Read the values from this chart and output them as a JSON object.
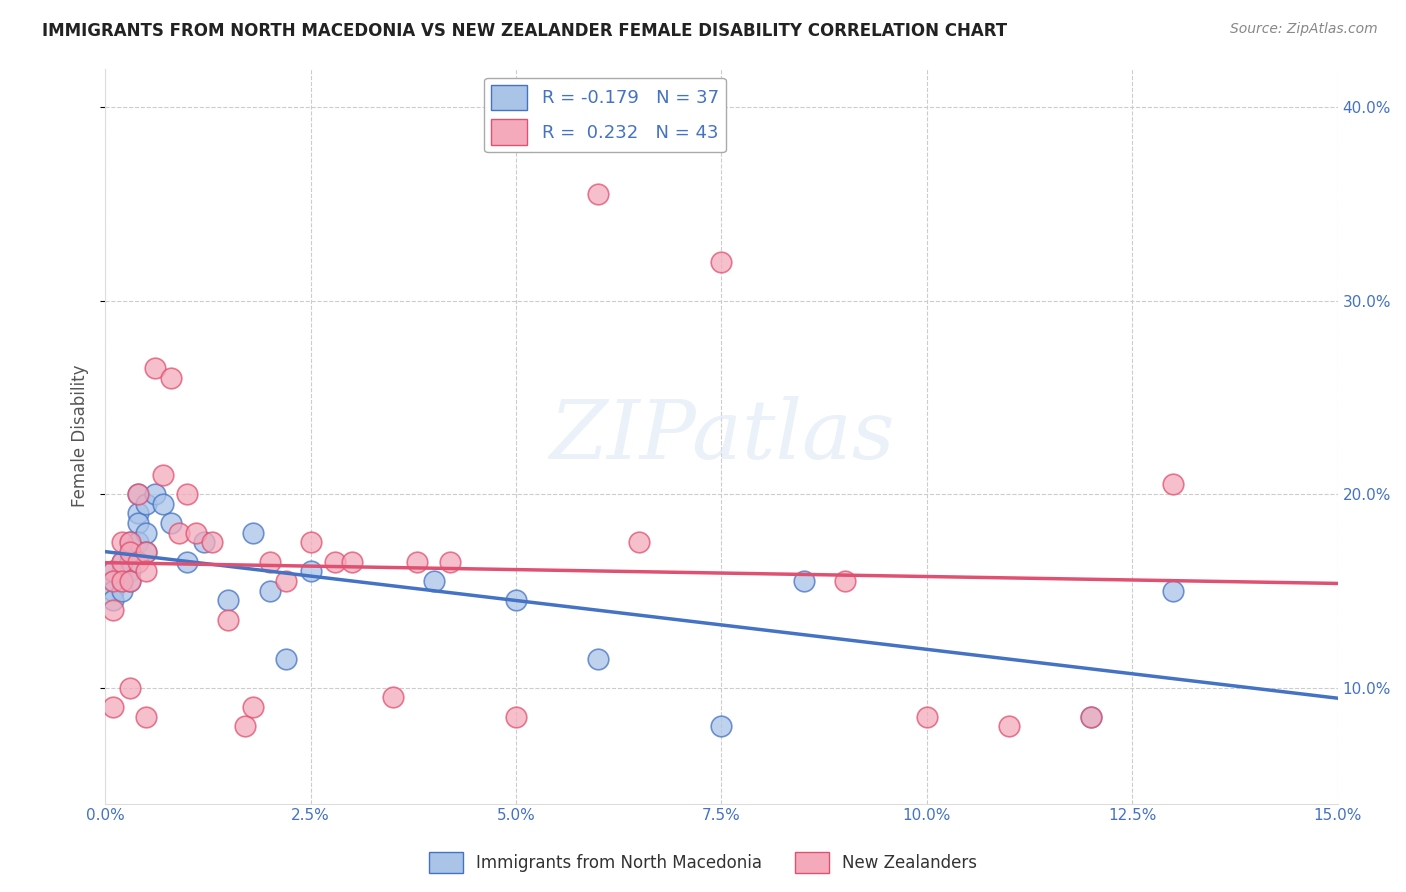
{
  "title": "IMMIGRANTS FROM NORTH MACEDONIA VS NEW ZEALANDER FEMALE DISABILITY CORRELATION CHART",
  "source": "Source: ZipAtlas.com",
  "xlabel_blue": "Immigrants from North Macedonia",
  "xlabel_pink": "New Zealanders",
  "ylabel": "Female Disability",
  "xlim": [
    0.0,
    0.15
  ],
  "ylim": [
    0.04,
    0.42
  ],
  "r_blue": -0.179,
  "n_blue": 37,
  "r_pink": 0.232,
  "n_pink": 43,
  "blue_color": "#aac4e8",
  "pink_color": "#f4aabb",
  "blue_line_color": "#4472c4",
  "pink_line_color": "#e05070",
  "background_color": "#ffffff",
  "grid_color": "#cccccc",
  "blue_scatter_x": [
    0.001,
    0.001,
    0.001,
    0.001,
    0.002,
    0.002,
    0.002,
    0.002,
    0.003,
    0.003,
    0.003,
    0.003,
    0.003,
    0.004,
    0.004,
    0.004,
    0.004,
    0.005,
    0.005,
    0.005,
    0.006,
    0.007,
    0.008,
    0.01,
    0.012,
    0.015,
    0.018,
    0.02,
    0.022,
    0.025,
    0.04,
    0.05,
    0.06,
    0.075,
    0.085,
    0.12,
    0.13
  ],
  "blue_scatter_y": [
    0.16,
    0.155,
    0.15,
    0.145,
    0.165,
    0.16,
    0.155,
    0.15,
    0.175,
    0.17,
    0.165,
    0.16,
    0.155,
    0.2,
    0.19,
    0.185,
    0.175,
    0.195,
    0.18,
    0.17,
    0.2,
    0.195,
    0.185,
    0.165,
    0.175,
    0.145,
    0.18,
    0.15,
    0.115,
    0.16,
    0.155,
    0.145,
    0.115,
    0.08,
    0.155,
    0.085,
    0.15
  ],
  "pink_scatter_x": [
    0.001,
    0.001,
    0.001,
    0.001,
    0.002,
    0.002,
    0.002,
    0.003,
    0.003,
    0.003,
    0.003,
    0.004,
    0.004,
    0.005,
    0.005,
    0.005,
    0.006,
    0.007,
    0.008,
    0.009,
    0.01,
    0.011,
    0.013,
    0.015,
    0.017,
    0.018,
    0.02,
    0.022,
    0.025,
    0.028,
    0.03,
    0.035,
    0.038,
    0.042,
    0.05,
    0.06,
    0.065,
    0.075,
    0.09,
    0.1,
    0.11,
    0.12,
    0.13
  ],
  "pink_scatter_y": [
    0.16,
    0.155,
    0.14,
    0.09,
    0.175,
    0.165,
    0.155,
    0.175,
    0.17,
    0.155,
    0.1,
    0.2,
    0.165,
    0.17,
    0.16,
    0.085,
    0.265,
    0.21,
    0.26,
    0.18,
    0.2,
    0.18,
    0.175,
    0.135,
    0.08,
    0.09,
    0.165,
    0.155,
    0.175,
    0.165,
    0.165,
    0.095,
    0.165,
    0.165,
    0.085,
    0.355,
    0.175,
    0.32,
    0.155,
    0.085,
    0.08,
    0.085,
    0.205
  ]
}
